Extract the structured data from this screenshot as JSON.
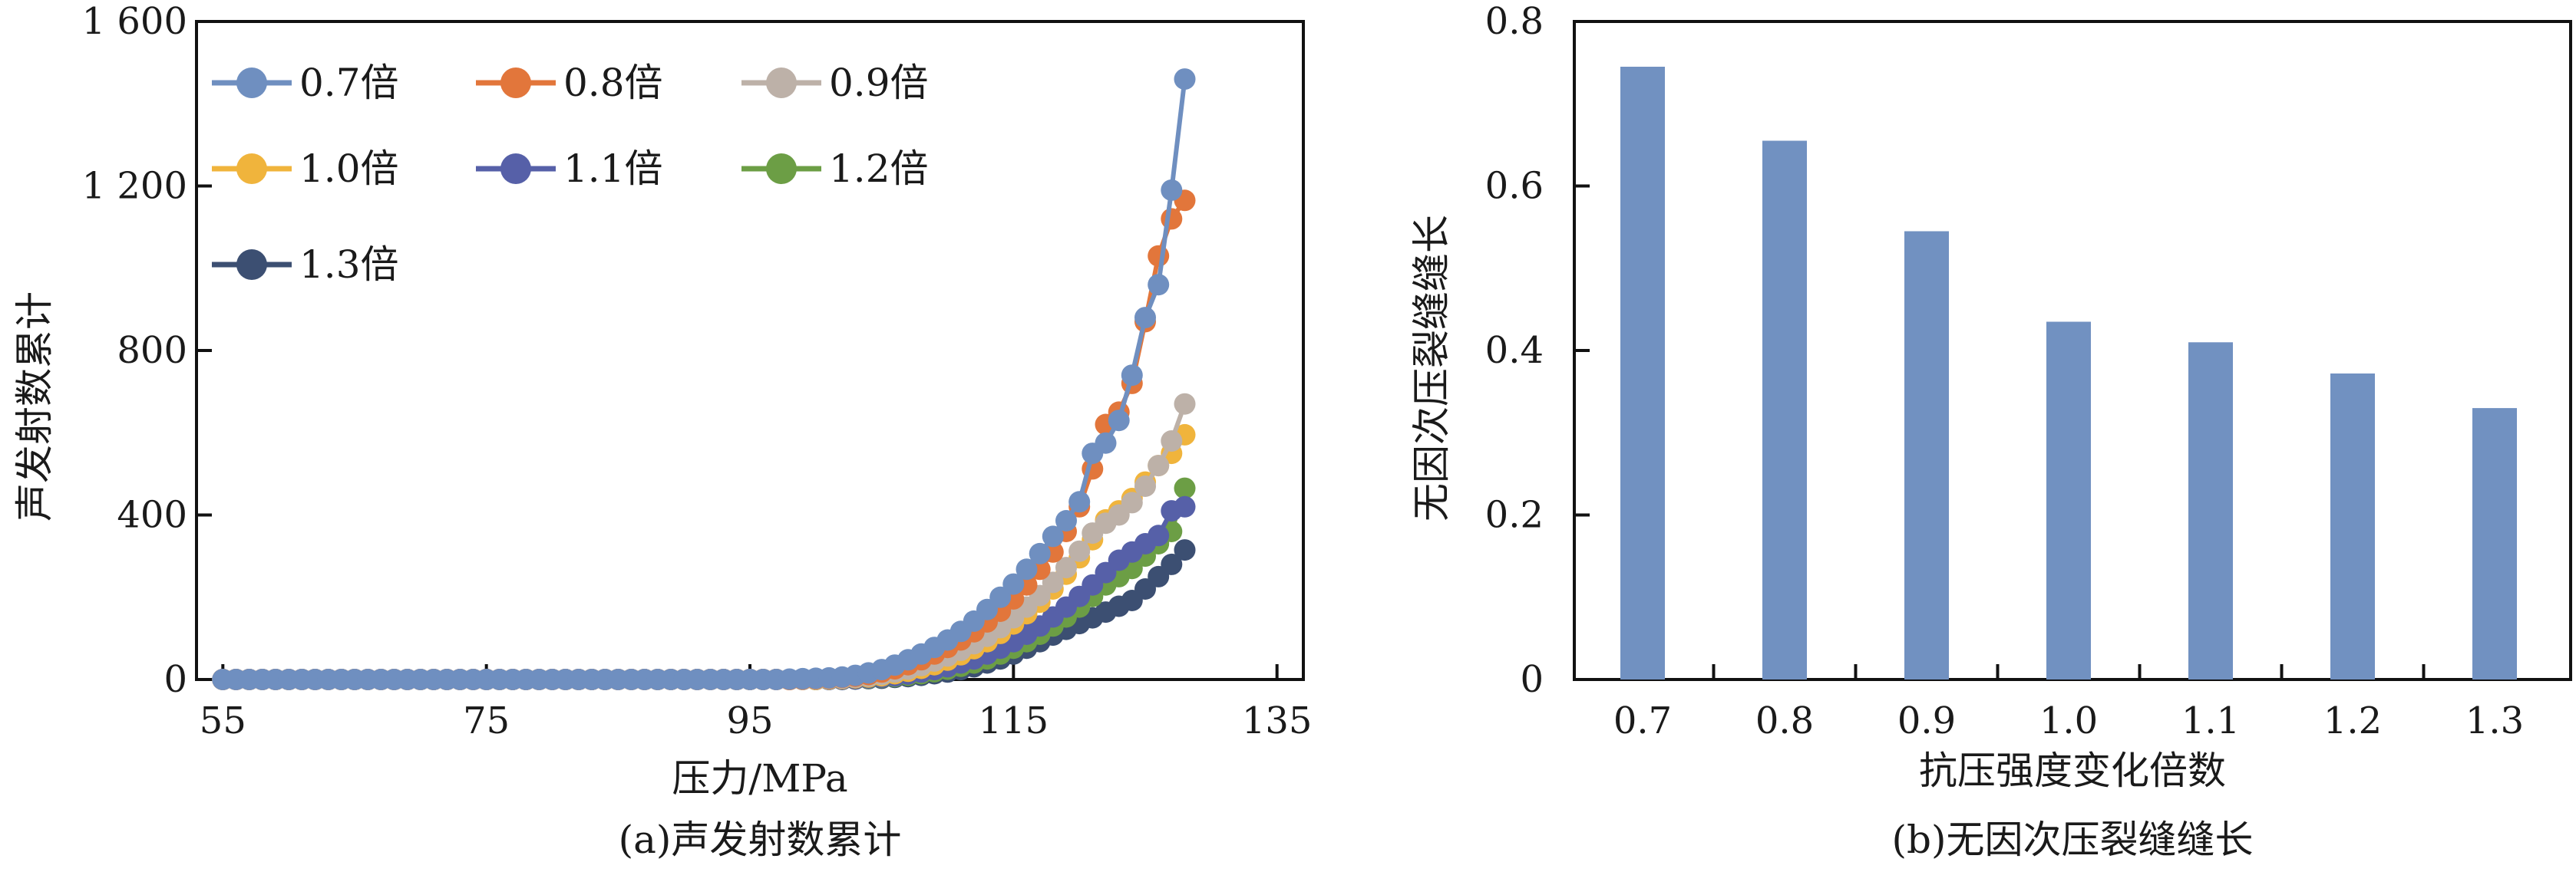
{
  "chart_data": [
    {
      "type": "line",
      "caption": "(a)声发射数累计",
      "title": "",
      "xlabel": "压力/MPa",
      "ylabel": "声发射数累计",
      "xlim": [
        53,
        137
      ],
      "ylim": [
        0,
        1600
      ],
      "xticks": [
        55,
        75,
        95,
        115,
        135
      ],
      "xtick_labels": [
        "55",
        "75",
        "95",
        "115",
        "135"
      ],
      "yticks": [
        0,
        400,
        800,
        1200,
        1600
      ],
      "ytick_labels": [
        "0",
        "400",
        "800",
        "1 200",
        "1 600"
      ],
      "legend_position": "top-left",
      "grid": false,
      "x_step": 1,
      "series": [
        {
          "name": "0.7倍",
          "color": "#6f8fc0",
          "x": [
            55,
            56,
            57,
            58,
            59,
            60,
            61,
            62,
            63,
            64,
            65,
            66,
            67,
            68,
            69,
            70,
            71,
            72,
            73,
            74,
            75,
            76,
            77,
            78,
            79,
            80,
            81,
            82,
            83,
            84,
            85,
            86,
            87,
            88,
            89,
            90,
            91,
            92,
            93,
            94,
            95,
            96,
            97,
            98,
            99,
            100,
            101,
            102,
            103,
            104,
            105,
            106,
            107,
            108,
            109,
            110,
            111,
            112,
            113,
            114,
            115,
            116,
            117,
            118,
            119,
            120,
            121,
            122,
            123,
            124,
            125,
            126,
            127,
            128
          ],
          "values": [
            0,
            0,
            0,
            0,
            0,
            0,
            0,
            0,
            0,
            0,
            0,
            0,
            0,
            0,
            0,
            0,
            0,
            0,
            0,
            0,
            0,
            0,
            0,
            0,
            0,
            0,
            0,
            0,
            0,
            0,
            0,
            0,
            0,
            0,
            0,
            0,
            0,
            0,
            0,
            0,
            0,
            0,
            0,
            1,
            2,
            3,
            4,
            6,
            10,
            16,
            24,
            35,
            48,
            62,
            78,
            96,
            117,
            142,
            170,
            200,
            232,
            268,
            306,
            348,
            386,
            432,
            550,
            575,
            630,
            740,
            880,
            960,
            1190,
            1460
          ]
        },
        {
          "name": "0.8倍",
          "color": "#e2763b",
          "x": [
            55,
            56,
            57,
            58,
            59,
            60,
            61,
            62,
            63,
            64,
            65,
            66,
            67,
            68,
            69,
            70,
            71,
            72,
            73,
            74,
            75,
            76,
            77,
            78,
            79,
            80,
            81,
            82,
            83,
            84,
            85,
            86,
            87,
            88,
            89,
            90,
            91,
            92,
            93,
            94,
            95,
            96,
            97,
            98,
            99,
            100,
            101,
            102,
            103,
            104,
            105,
            106,
            107,
            108,
            109,
            110,
            111,
            112,
            113,
            114,
            115,
            116,
            117,
            118,
            119,
            120,
            121,
            122,
            123,
            124,
            125,
            126,
            127,
            128
          ],
          "values": [
            0,
            0,
            0,
            0,
            0,
            0,
            0,
            0,
            0,
            0,
            0,
            0,
            0,
            0,
            0,
            0,
            0,
            0,
            0,
            0,
            0,
            0,
            0,
            0,
            0,
            0,
            0,
            0,
            0,
            0,
            0,
            0,
            0,
            0,
            0,
            0,
            0,
            0,
            0,
            0,
            0,
            0,
            0,
            0,
            1,
            2,
            3,
            5,
            8,
            12,
            18,
            26,
            36,
            48,
            62,
            78,
            96,
            116,
            140,
            166,
            196,
            230,
            268,
            310,
            360,
            420,
            512,
            620,
            650,
            720,
            870,
            1030,
            1120,
            1165
          ]
        },
        {
          "name": "0.9倍",
          "color": "#bdb1a8",
          "x": [
            55,
            56,
            57,
            58,
            59,
            60,
            61,
            62,
            63,
            64,
            65,
            66,
            67,
            68,
            69,
            70,
            71,
            72,
            73,
            74,
            75,
            76,
            77,
            78,
            79,
            80,
            81,
            82,
            83,
            84,
            85,
            86,
            87,
            88,
            89,
            90,
            91,
            92,
            93,
            94,
            95,
            96,
            97,
            98,
            99,
            100,
            101,
            102,
            103,
            104,
            105,
            106,
            107,
            108,
            109,
            110,
            111,
            112,
            113,
            114,
            115,
            116,
            117,
            118,
            119,
            120,
            121,
            122,
            123,
            124,
            125,
            126,
            127,
            128
          ],
          "values": [
            0,
            0,
            0,
            0,
            0,
            0,
            0,
            0,
            0,
            0,
            0,
            0,
            0,
            0,
            0,
            0,
            0,
            0,
            0,
            0,
            0,
            0,
            0,
            0,
            0,
            0,
            0,
            0,
            0,
            0,
            0,
            0,
            0,
            0,
            0,
            0,
            0,
            0,
            0,
            0,
            0,
            0,
            0,
            0,
            0,
            1,
            2,
            3,
            5,
            8,
            12,
            18,
            25,
            34,
            45,
            57,
            71,
            87,
            105,
            126,
            150,
            176,
            204,
            236,
            272,
            312,
            356,
            380,
            400,
            430,
            470,
            520,
            580,
            670
          ]
        },
        {
          "name": "1.0倍",
          "color": "#f0b43c",
          "x": [
            55,
            56,
            57,
            58,
            59,
            60,
            61,
            62,
            63,
            64,
            65,
            66,
            67,
            68,
            69,
            70,
            71,
            72,
            73,
            74,
            75,
            76,
            77,
            78,
            79,
            80,
            81,
            82,
            83,
            84,
            85,
            86,
            87,
            88,
            89,
            90,
            91,
            92,
            93,
            94,
            95,
            96,
            97,
            98,
            99,
            100,
            101,
            102,
            103,
            104,
            105,
            106,
            107,
            108,
            109,
            110,
            111,
            112,
            113,
            114,
            115,
            116,
            117,
            118,
            119,
            120,
            121,
            122,
            123,
            124,
            125,
            126,
            127,
            128
          ],
          "values": [
            0,
            0,
            0,
            0,
            0,
            0,
            0,
            0,
            0,
            0,
            0,
            0,
            0,
            0,
            0,
            0,
            0,
            0,
            0,
            0,
            0,
            0,
            0,
            0,
            0,
            0,
            0,
            0,
            0,
            0,
            0,
            0,
            0,
            0,
            0,
            0,
            0,
            0,
            0,
            0,
            0,
            0,
            0,
            0,
            0,
            0,
            1,
            2,
            4,
            6,
            9,
            14,
            20,
            27,
            36,
            47,
            60,
            75,
            92,
            112,
            135,
            160,
            188,
            220,
            256,
            296,
            340,
            388,
            410,
            440,
            480,
            520,
            550,
            595
          ]
        },
        {
          "name": "1.1倍",
          "color": "#5660a8",
          "x": [
            55,
            56,
            57,
            58,
            59,
            60,
            61,
            62,
            63,
            64,
            65,
            66,
            67,
            68,
            69,
            70,
            71,
            72,
            73,
            74,
            75,
            76,
            77,
            78,
            79,
            80,
            81,
            82,
            83,
            84,
            85,
            86,
            87,
            88,
            89,
            90,
            91,
            92,
            93,
            94,
            95,
            96,
            97,
            98,
            99,
            100,
            101,
            102,
            103,
            104,
            105,
            106,
            107,
            108,
            109,
            110,
            111,
            112,
            113,
            114,
            115,
            116,
            117,
            118,
            119,
            120,
            121,
            122,
            123,
            124,
            125,
            126,
            127,
            128
          ],
          "values": [
            0,
            0,
            0,
            0,
            0,
            0,
            0,
            0,
            0,
            0,
            0,
            0,
            0,
            0,
            0,
            0,
            0,
            0,
            0,
            0,
            0,
            0,
            0,
            0,
            0,
            0,
            0,
            0,
            0,
            0,
            0,
            0,
            0,
            0,
            0,
            0,
            0,
            0,
            0,
            0,
            0,
            0,
            0,
            0,
            0,
            0,
            0,
            1,
            2,
            4,
            6,
            9,
            13,
            18,
            24,
            31,
            40,
            50,
            62,
            76,
            92,
            110,
            130,
            152,
            176,
            202,
            230,
            260,
            290,
            310,
            330,
            350,
            410,
            420
          ]
        },
        {
          "name": "1.2倍",
          "color": "#6c9e45",
          "x": [
            55,
            56,
            57,
            58,
            59,
            60,
            61,
            62,
            63,
            64,
            65,
            66,
            67,
            68,
            69,
            70,
            71,
            72,
            73,
            74,
            75,
            76,
            77,
            78,
            79,
            80,
            81,
            82,
            83,
            84,
            85,
            86,
            87,
            88,
            89,
            90,
            91,
            92,
            93,
            94,
            95,
            96,
            97,
            98,
            99,
            100,
            101,
            102,
            103,
            104,
            105,
            106,
            107,
            108,
            109,
            110,
            111,
            112,
            113,
            114,
            115,
            116,
            117,
            118,
            119,
            120,
            121,
            122,
            123,
            124,
            125,
            126,
            127,
            128
          ],
          "values": [
            0,
            0,
            0,
            0,
            0,
            0,
            0,
            0,
            0,
            0,
            0,
            0,
            0,
            0,
            0,
            0,
            0,
            0,
            0,
            0,
            0,
            0,
            0,
            0,
            0,
            0,
            0,
            0,
            0,
            0,
            0,
            0,
            0,
            0,
            0,
            0,
            0,
            0,
            0,
            0,
            0,
            0,
            0,
            0,
            0,
            0,
            0,
            1,
            2,
            3,
            5,
            7,
            10,
            14,
            19,
            25,
            32,
            40,
            50,
            62,
            76,
            92,
            110,
            130,
            152,
            176,
            202,
            230,
            250,
            270,
            300,
            330,
            360,
            465
          ]
        },
        {
          "name": "1.3倍",
          "color": "#3c4f72",
          "x": [
            55,
            56,
            57,
            58,
            59,
            60,
            61,
            62,
            63,
            64,
            65,
            66,
            67,
            68,
            69,
            70,
            71,
            72,
            73,
            74,
            75,
            76,
            77,
            78,
            79,
            80,
            81,
            82,
            83,
            84,
            85,
            86,
            87,
            88,
            89,
            90,
            91,
            92,
            93,
            94,
            95,
            96,
            97,
            98,
            99,
            100,
            101,
            102,
            103,
            104,
            105,
            106,
            107,
            108,
            109,
            110,
            111,
            112,
            113,
            114,
            115,
            116,
            117,
            118,
            119,
            120,
            121,
            122,
            123,
            124,
            125,
            126,
            127,
            128
          ],
          "values": [
            0,
            0,
            0,
            0,
            0,
            0,
            0,
            0,
            0,
            0,
            0,
            0,
            0,
            0,
            0,
            0,
            0,
            0,
            0,
            0,
            0,
            0,
            0,
            0,
            0,
            0,
            0,
            0,
            0,
            0,
            0,
            0,
            0,
            0,
            0,
            0,
            0,
            0,
            0,
            0,
            0,
            0,
            0,
            0,
            0,
            0,
            0,
            0,
            1,
            2,
            3,
            5,
            7,
            10,
            14,
            18,
            24,
            31,
            40,
            50,
            62,
            76,
            92,
            108,
            122,
            136,
            150,
            164,
            178,
            192,
            220,
            250,
            280,
            315
          ]
        }
      ]
    },
    {
      "type": "bar",
      "caption": "(b)无因次压裂缝缝长",
      "title": "",
      "xlabel": "抗压强度变化倍数",
      "ylabel": "无因次压裂缝缝长",
      "ylim": [
        0,
        0.8
      ],
      "yticks": [
        0,
        0.2,
        0.4,
        0.6,
        0.8
      ],
      "ytick_labels": [
        "0",
        "0.2",
        "0.4",
        "0.6",
        "0.8"
      ],
      "grid": false,
      "bar_color": "#7191c1",
      "categories": [
        "0.7",
        "0.8",
        "0.9",
        "1.0",
        "1.1",
        "1.2",
        "1.3"
      ],
      "values": [
        0.745,
        0.655,
        0.545,
        0.435,
        0.41,
        0.372,
        0.33
      ]
    }
  ]
}
